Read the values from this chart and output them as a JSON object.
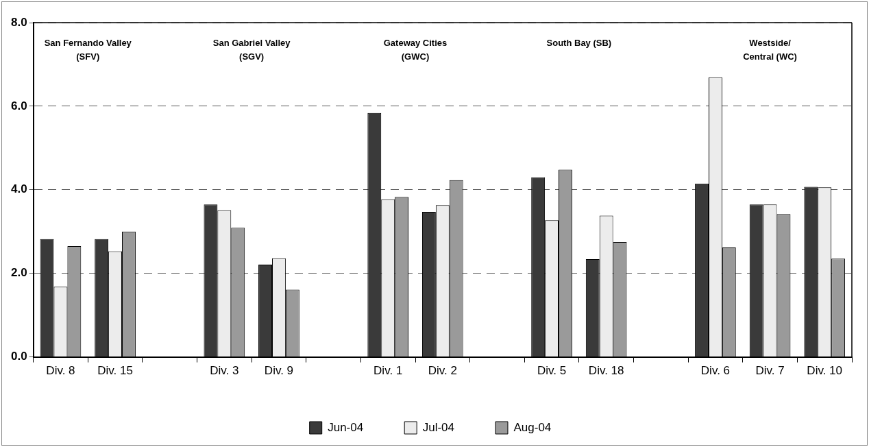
{
  "chart_data": {
    "type": "bar",
    "categories": [
      "Div. 8",
      "Div. 15",
      null,
      "Div. 3",
      "Div. 9",
      null,
      "Div. 1",
      "Div. 2",
      null,
      "Div. 5",
      "Div. 18",
      null,
      "Div. 6",
      "Div. 7",
      "Div. 10"
    ],
    "series": [
      {
        "name": "Jun-04",
        "color": "#3a3a3a",
        "values": [
          2.82,
          2.82,
          null,
          3.65,
          2.21,
          null,
          5.84,
          3.47,
          null,
          4.3,
          2.34,
          null,
          4.15,
          3.65,
          4.07
        ]
      },
      {
        "name": "Jul-04",
        "color": "#ececec",
        "values": [
          1.68,
          2.53,
          null,
          3.51,
          2.36,
          null,
          3.77,
          3.63,
          null,
          3.27,
          3.38,
          null,
          6.69,
          3.65,
          4.06
        ]
      },
      {
        "name": "Aug-04",
        "color": "#9a9a9a",
        "values": [
          2.65,
          3.0,
          null,
          3.09,
          1.61,
          null,
          3.83,
          4.23,
          null,
          4.48,
          2.75,
          null,
          2.62,
          3.42,
          2.35
        ]
      }
    ],
    "ylim": [
      0,
      8
    ],
    "yticks": [
      {
        "value": 0,
        "label": "0.0"
      },
      {
        "value": 2,
        "label": "2.0"
      },
      {
        "value": 4,
        "label": "4.0"
      },
      {
        "value": 6,
        "label": "6.0"
      },
      {
        "value": 8,
        "label": "8.0"
      }
    ],
    "grid": "y",
    "legend": "bottom",
    "annotations": [
      "San Fernando Valley\n(SFV)",
      "San Gabriel Valley\n(SGV)",
      "Gateway Cities\n(GWC)",
      "South Bay (SB)",
      "Westside/\nCentral (WC)"
    ]
  }
}
